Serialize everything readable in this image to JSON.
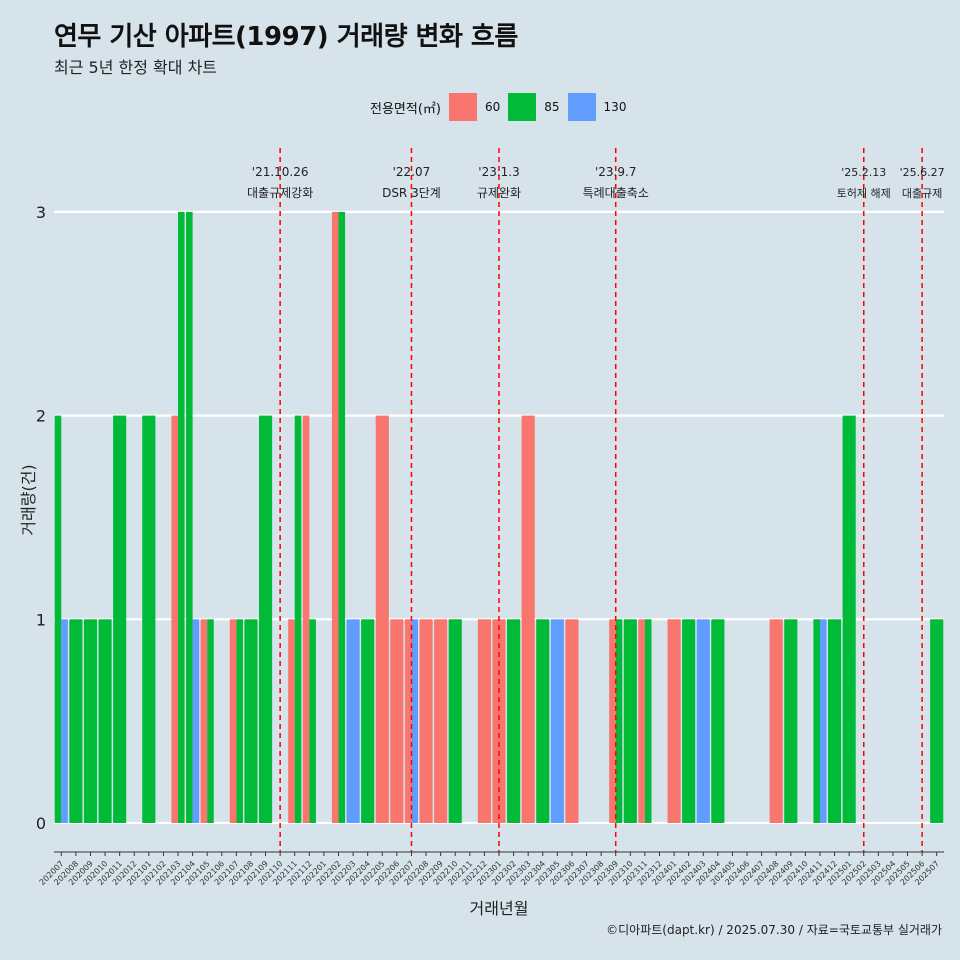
{
  "header": {
    "title": "연무 기산 아파트(1997) 거래량 변화 흐름",
    "subtitle": "최근 5년 한정 확대 차트"
  },
  "legend": {
    "title": "전용면적(㎡)",
    "items": [
      {
        "label": "60",
        "color": "#f8766d"
      },
      {
        "label": "85",
        "color": "#00ba38"
      },
      {
        "label": "130",
        "color": "#619cff"
      }
    ]
  },
  "caption": "©디아파트(dapt.kr) / 2025.07.30 / 자료=국토교통부 실거래가",
  "chart_data": {
    "type": "bar",
    "title": "연무 기산 아파트(1997) 거래량 변화 흐름",
    "subtitle": "최근 5년 한정 확대 차트",
    "xlabel": "거래년월",
    "ylabel": "거래량(건)",
    "ylim": [
      0,
      3
    ],
    "yticks": [
      0,
      1,
      2,
      3
    ],
    "grid": "horizontal major lines only",
    "legend_placement": "top",
    "categories": [
      "202007",
      "202008",
      "202009",
      "202010",
      "202011",
      "202012",
      "202101",
      "202102",
      "202103",
      "202104",
      "202105",
      "202106",
      "202107",
      "202108",
      "202109",
      "202110",
      "202111",
      "202112",
      "202201",
      "202202",
      "202203",
      "202204",
      "202205",
      "202206",
      "202207",
      "202208",
      "202209",
      "202210",
      "202211",
      "202212",
      "202301",
      "202302",
      "202303",
      "202304",
      "202305",
      "202306",
      "202307",
      "202308",
      "202309",
      "202310",
      "202311",
      "202312",
      "202401",
      "202402",
      "202403",
      "202404",
      "202405",
      "202406",
      "202407",
      "202408",
      "202409",
      "202410",
      "202411",
      "202412",
      "202501",
      "202502",
      "202503",
      "202504",
      "202505",
      "202506",
      "202507"
    ],
    "series": [
      {
        "name": "60",
        "color": "#f8766d",
        "values": [
          0,
          0,
          0,
          0,
          0,
          0,
          0,
          0,
          2,
          0,
          1,
          0,
          1,
          0,
          0,
          0,
          1,
          2,
          0,
          3,
          0,
          0,
          2,
          1,
          1,
          1,
          1,
          0,
          0,
          1,
          1,
          0,
          2,
          0,
          0,
          1,
          0,
          0,
          1,
          0,
          1,
          0,
          1,
          0,
          0,
          0,
          0,
          0,
          0,
          1,
          0,
          0,
          0,
          0,
          0,
          0,
          0,
          0,
          0,
          0,
          0
        ]
      },
      {
        "name": "85",
        "color": "#00ba38",
        "values": [
          2,
          1,
          1,
          1,
          2,
          0,
          2,
          0,
          3,
          3,
          1,
          0,
          1,
          1,
          2,
          0,
          2,
          1,
          0,
          3,
          0,
          1,
          0,
          0,
          0,
          0,
          0,
          1,
          0,
          0,
          0,
          1,
          0,
          1,
          0,
          0,
          0,
          0,
          1,
          1,
          1,
          0,
          0,
          1,
          0,
          1,
          0,
          0,
          0,
          0,
          1,
          0,
          1,
          1,
          2,
          0,
          0,
          0,
          0,
          0,
          1
        ]
      },
      {
        "name": "130",
        "color": "#619cff",
        "values": [
          1,
          0,
          0,
          0,
          0,
          0,
          0,
          0,
          0,
          1,
          0,
          0,
          0,
          0,
          0,
          0,
          0,
          0,
          0,
          0,
          1,
          0,
          0,
          0,
          1,
          0,
          0,
          0,
          0,
          0,
          0,
          0,
          0,
          0,
          1,
          0,
          0,
          0,
          0,
          0,
          0,
          0,
          0,
          0,
          1,
          0,
          0,
          0,
          0,
          0,
          0,
          0,
          1,
          0,
          0,
          0,
          0,
          0,
          0,
          0,
          0
        ]
      }
    ],
    "annotations": [
      {
        "date": "'21.10.26",
        "label": "대출규제강화",
        "x": "202110"
      },
      {
        "date": "'22.07",
        "label": "DSR 3단계",
        "x": "202207"
      },
      {
        "date": "'23.1.3",
        "label": "규제완화",
        "x": "202301"
      },
      {
        "date": "'23.9.7",
        "label": "특례대출축소",
        "x": "202309"
      },
      {
        "date": "'25.2.13",
        "label": "토허제 해제",
        "x": "202502"
      },
      {
        "date": "'25.6.27",
        "label": "대출규제",
        "x": "202506"
      }
    ],
    "annotation_line_color": "#ff0000"
  }
}
